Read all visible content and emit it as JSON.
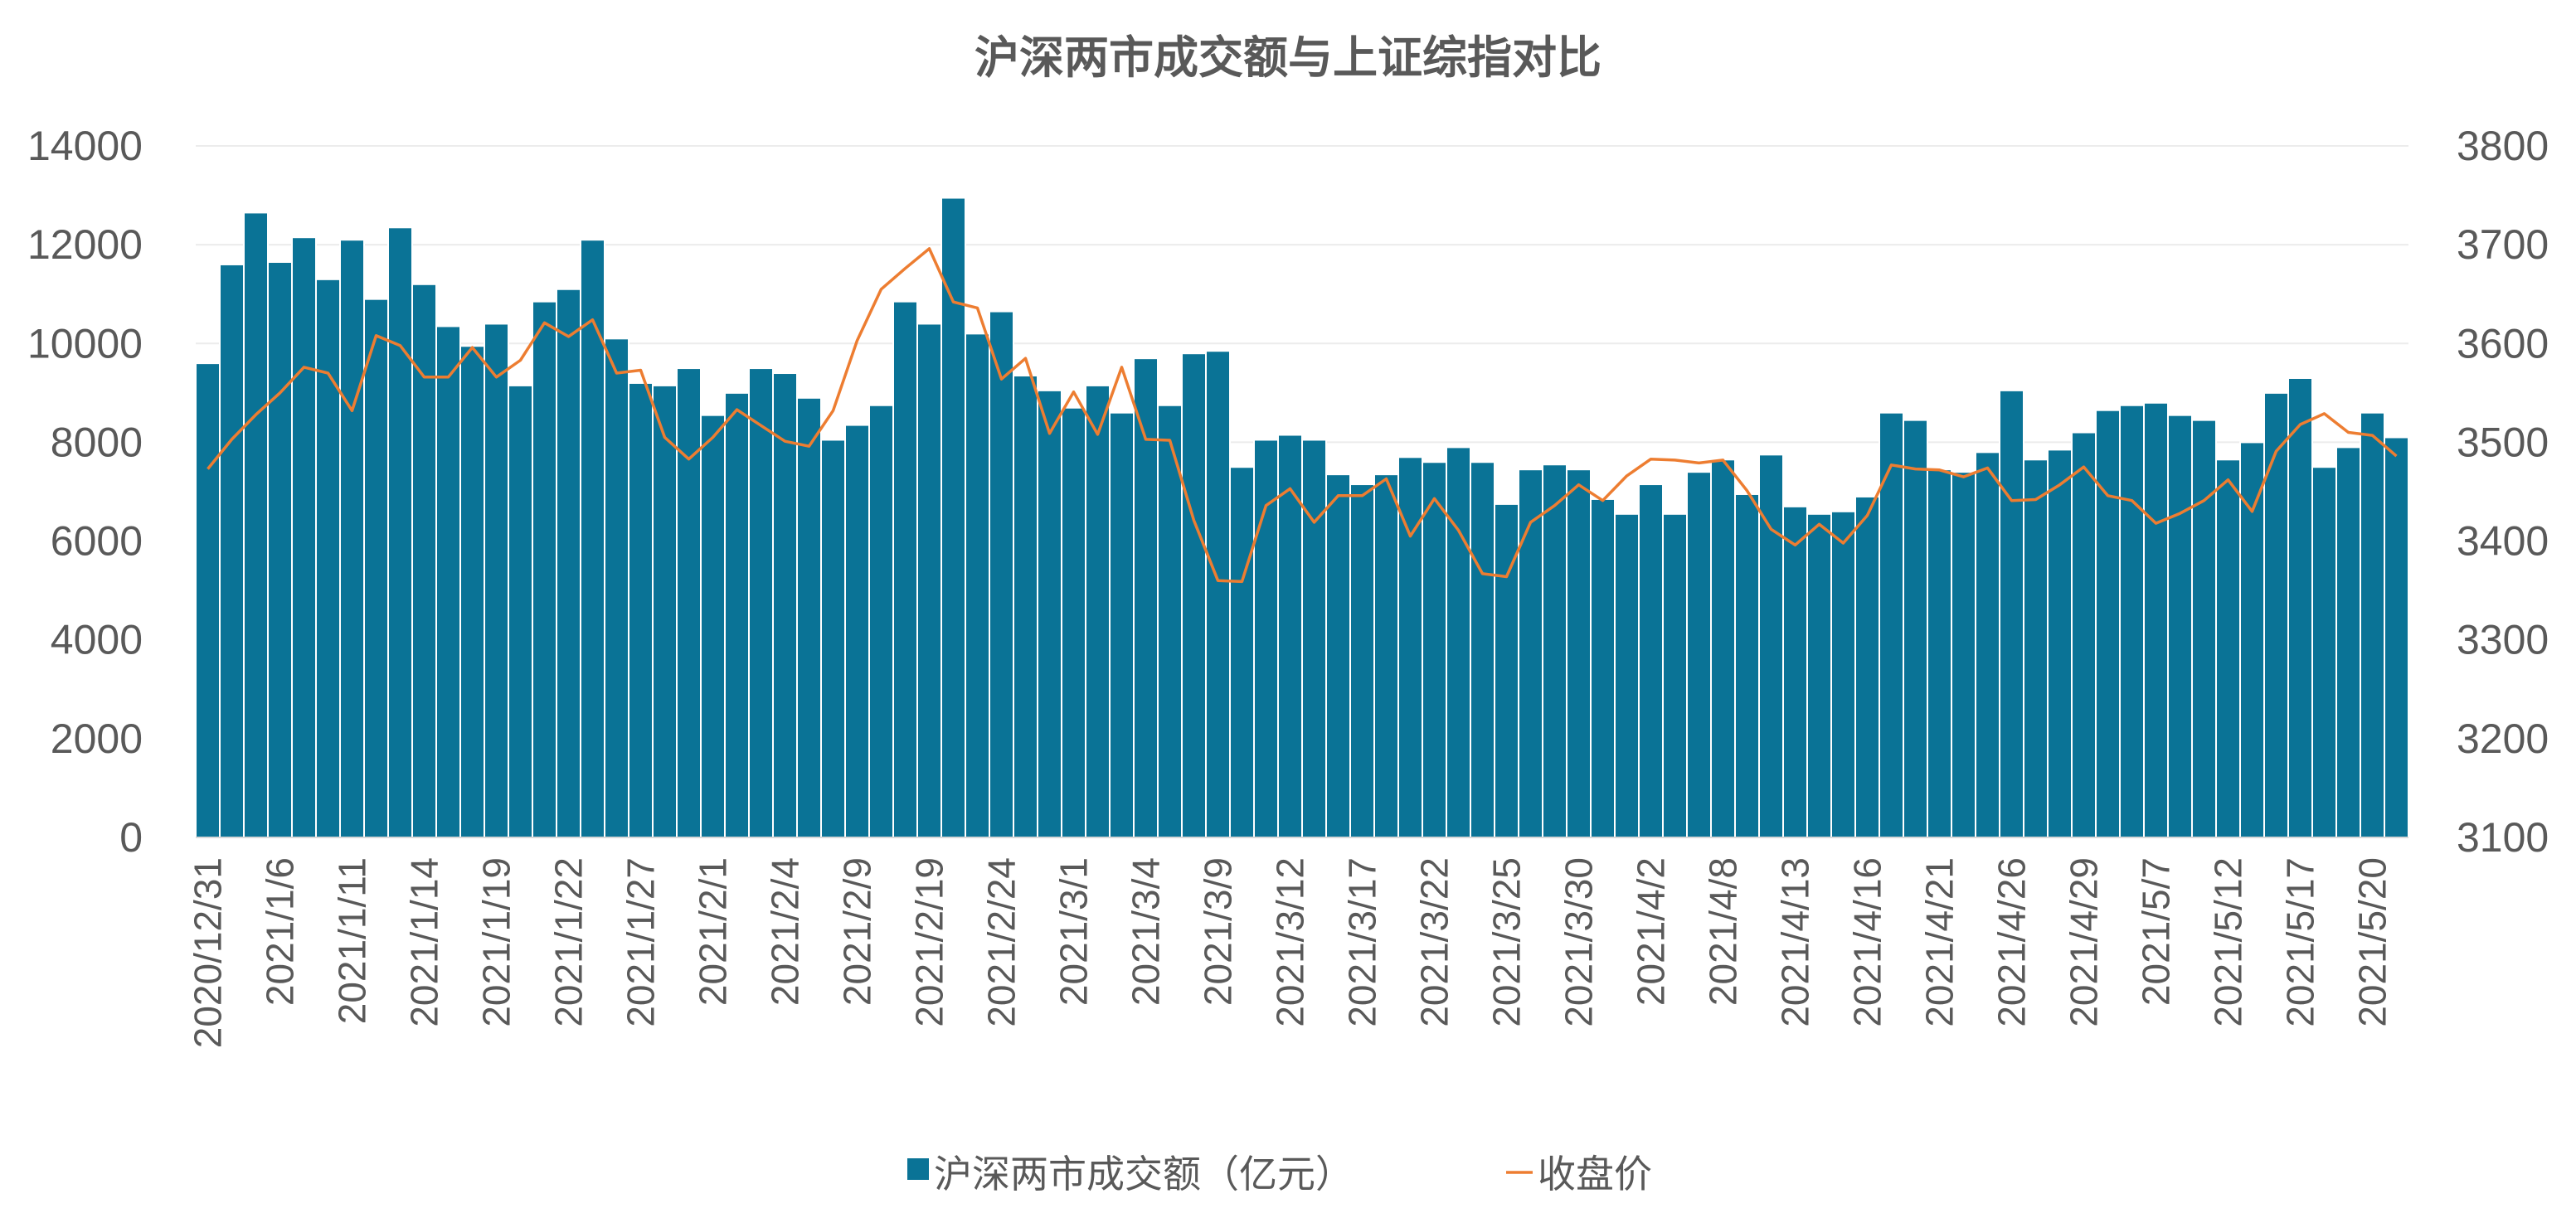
{
  "chart_data": {
    "type": "bar",
    "title": "沪深两市成交额与上证综指对比",
    "x": [
      "2020/12/31",
      "2021/1/4",
      "2021/1/5",
      "2021/1/6",
      "2021/1/7",
      "2021/1/8",
      "2021/1/11",
      "2021/1/12",
      "2021/1/13",
      "2021/1/14",
      "2021/1/15",
      "2021/1/18",
      "2021/1/19",
      "2021/1/20",
      "2021/1/21",
      "2021/1/22",
      "2021/1/25",
      "2021/1/26",
      "2021/1/27",
      "2021/1/28",
      "2021/1/29",
      "2021/2/1",
      "2021/2/2",
      "2021/2/3",
      "2021/2/4",
      "2021/2/5",
      "2021/2/8",
      "2021/2/9",
      "2021/2/10",
      "2021/2/18",
      "2021/2/19",
      "2021/2/22",
      "2021/2/23",
      "2021/2/24",
      "2021/2/25",
      "2021/2/26",
      "2021/3/1",
      "2021/3/2",
      "2021/3/3",
      "2021/3/4",
      "2021/3/5",
      "2021/3/8",
      "2021/3/9",
      "2021/3/10",
      "2021/3/11",
      "2021/3/12",
      "2021/3/15",
      "2021/3/16",
      "2021/3/17",
      "2021/3/18",
      "2021/3/19",
      "2021/3/22",
      "2021/3/23",
      "2021/3/24",
      "2021/3/25",
      "2021/3/26",
      "2021/3/29",
      "2021/3/30",
      "2021/3/31",
      "2021/4/1",
      "2021/4/2",
      "2021/4/6",
      "2021/4/7",
      "2021/4/8",
      "2021/4/9",
      "2021/4/12",
      "2021/4/13",
      "2021/4/14",
      "2021/4/15",
      "2021/4/16",
      "2021/4/19",
      "2021/4/20",
      "2021/4/21",
      "2021/4/22",
      "2021/4/23",
      "2021/4/26",
      "2021/4/27",
      "2021/4/28",
      "2021/4/29",
      "2021/4/30",
      "2021/5/6",
      "2021/5/7",
      "2021/5/10",
      "2021/5/11",
      "2021/5/12",
      "2021/5/13",
      "2021/5/14",
      "2021/5/17",
      "2021/5/18",
      "2021/5/19",
      "2021/5/20",
      "2021/5/21"
    ],
    "tick_labels": [
      "2020/12/31",
      "2021/1/6",
      "2021/1/11",
      "2021/1/14",
      "2021/1/19",
      "2021/1/22",
      "2021/1/27",
      "2021/2/1",
      "2021/2/4",
      "2021/2/9",
      "2021/2/19",
      "2021/2/24",
      "2021/3/1",
      "2021/3/4",
      "2021/3/9",
      "2021/3/12",
      "2021/3/17",
      "2021/3/22",
      "2021/3/25",
      "2021/3/30",
      "2021/4/2",
      "2021/4/8",
      "2021/4/13",
      "2021/4/16",
      "2021/4/21",
      "2021/4/26",
      "2021/4/29",
      "2021/5/7",
      "2021/5/12",
      "2021/5/17",
      "2021/5/20"
    ],
    "series": [
      {
        "name": "沪深两市成交额（亿元）",
        "type": "bar",
        "axis": "left",
        "color": "#0a7396",
        "values": [
          9600,
          11600,
          12650,
          11650,
          12150,
          11300,
          12100,
          10900,
          12350,
          11200,
          10350,
          9950,
          10400,
          9150,
          10850,
          11100,
          12100,
          10100,
          9200,
          9150,
          9500,
          8550,
          9000,
          9500,
          9400,
          8900,
          8050,
          8350,
          8750,
          10850,
          10400,
          12950,
          10200,
          10650,
          9350,
          9050,
          8700,
          9150,
          8600,
          9700,
          8750,
          9800,
          9850,
          7500,
          8050,
          8150,
          8050,
          7350,
          7150,
          7350,
          7700,
          7600,
          7900,
          7600,
          6750,
          7450,
          7550,
          7450,
          6850,
          6550,
          7150,
          6550,
          7400,
          7650,
          6950,
          7750,
          6700,
          6550,
          6600,
          6900,
          8600,
          8450,
          7450,
          7400,
          7800,
          9050,
          7650,
          7850,
          8200,
          8650,
          8750,
          8800,
          8550,
          8450,
          7650,
          8000,
          9000,
          9300,
          7500,
          7900,
          8600,
          8100
        ]
      },
      {
        "name": "收盘价",
        "type": "line",
        "axis": "right",
        "color": "#ed7d31",
        "values": [
          3473,
          3503,
          3528,
          3550,
          3576,
          3570,
          3532,
          3608,
          3598,
          3566,
          3566,
          3596,
          3566,
          3583,
          3621,
          3607,
          3624,
          3570,
          3573,
          3505,
          3483,
          3505,
          3533,
          3517,
          3501,
          3496,
          3532,
          3603,
          3655,
          3676,
          3696,
          3642,
          3636,
          3564,
          3585,
          3509,
          3551,
          3508,
          3576,
          3503,
          3502,
          3421,
          3360,
          3359,
          3436,
          3453,
          3419,
          3446,
          3446,
          3463,
          3405,
          3443,
          3411,
          3367,
          3364,
          3419,
          3436,
          3457,
          3441,
          3466,
          3483,
          3482,
          3479,
          3482,
          3451,
          3412,
          3396,
          3417,
          3398,
          3426,
          3477,
          3473,
          3472,
          3465,
          3474,
          3441,
          3442,
          3457,
          3475,
          3446,
          3441,
          3418,
          3428,
          3441,
          3462,
          3430,
          3491,
          3518,
          3529,
          3510,
          3507,
          3486
        ]
      }
    ],
    "y_left": {
      "ylim": [
        0,
        14000
      ],
      "ticks": [
        0,
        2000,
        4000,
        6000,
        8000,
        10000,
        12000,
        14000
      ]
    },
    "y_right": {
      "ylim": [
        3100,
        3800
      ],
      "ticks": [
        3100,
        3200,
        3300,
        3400,
        3500,
        3600,
        3700,
        3800
      ]
    },
    "grid": true,
    "legend": {
      "position": "bottom",
      "bar_label": "沪深两市成交额（亿元）",
      "line_label": "收盘价"
    }
  }
}
